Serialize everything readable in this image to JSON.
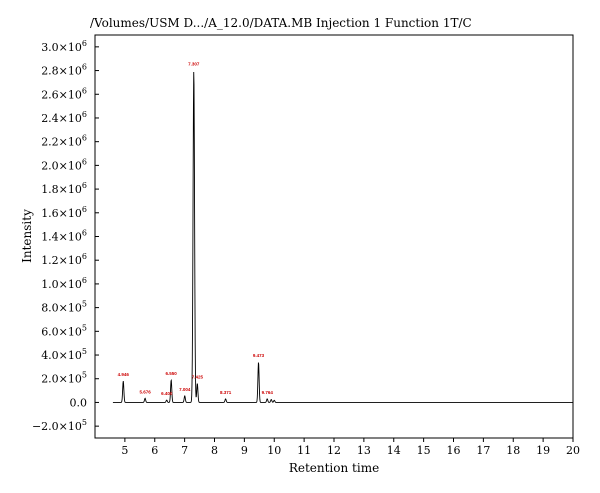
{
  "chart_data": {
    "type": "line",
    "title": "/Volumes/USM D.../A_12.0/DATA.MB Injection 1 Function 1T/C",
    "xlabel": "Retention time",
    "ylabel": "Intensity",
    "xlim": [
      4,
      20
    ],
    "ylim": [
      -300000,
      3100000
    ],
    "x_ticks": [
      5,
      6,
      7,
      8,
      9,
      10,
      11,
      12,
      13,
      14,
      15,
      16,
      17,
      18,
      19,
      20
    ],
    "x_tick_labels": [
      "5",
      "6",
      "7",
      "8",
      "9",
      "10",
      "11",
      "12",
      "13",
      "14",
      "15",
      "16",
      "17",
      "18",
      "19",
      "20"
    ],
    "y_ticks": [
      -200000,
      0,
      200000,
      400000,
      600000,
      800000,
      1000000,
      1200000,
      1400000,
      1600000,
      1800000,
      2000000,
      2200000,
      2400000,
      2600000,
      2800000,
      3000000
    ],
    "y_tick_labels": [
      {
        "base": "−2.0×10",
        "exp": "5"
      },
      {
        "base": "0.0",
        "exp": ""
      },
      {
        "base": "2.0×10",
        "exp": "5"
      },
      {
        "base": "4.0×10",
        "exp": "5"
      },
      {
        "base": "6.0×10",
        "exp": "5"
      },
      {
        "base": "8.0×10",
        "exp": "5"
      },
      {
        "base": "1.0×10",
        "exp": "6"
      },
      {
        "base": "1.2×10",
        "exp": "6"
      },
      {
        "base": "1.4×10",
        "exp": "6"
      },
      {
        "base": "1.6×10",
        "exp": "6"
      },
      {
        "base": "1.8×10",
        "exp": "6"
      },
      {
        "base": "2.0×10",
        "exp": "6"
      },
      {
        "base": "2.2×10",
        "exp": "6"
      },
      {
        "base": "2.4×10",
        "exp": "6"
      },
      {
        "base": "2.6×10",
        "exp": "6"
      },
      {
        "base": "2.8×10",
        "exp": "6"
      },
      {
        "base": "3.0×10",
        "exp": "6"
      }
    ],
    "grid": false,
    "line_color": "#000000",
    "label_color": "#cc0000",
    "peaks": [
      {
        "x": 4.946,
        "y": 180000,
        "label": "4.946"
      },
      {
        "x": 5.676,
        "y": 35000,
        "label": "5.676"
      },
      {
        "x": 6.4,
        "y": 20000,
        "label": "6.400"
      },
      {
        "x": 6.55,
        "y": 190000,
        "label": "6.550"
      },
      {
        "x": 7.004,
        "y": 55000,
        "label": "7.004"
      },
      {
        "x": 7.307,
        "y": 2800000,
        "label": "7.307"
      },
      {
        "x": 7.425,
        "y": 160000,
        "label": "7.425"
      },
      {
        "x": 8.371,
        "y": 30000,
        "label": "8.371"
      },
      {
        "x": 9.473,
        "y": 340000,
        "label": "9.473"
      },
      {
        "x": 9.764,
        "y": 30000,
        "label": "9.764"
      },
      {
        "x": 9.9,
        "y": 25000,
        "label": ""
      },
      {
        "x": 10.0,
        "y": 18000,
        "label": ""
      }
    ]
  }
}
